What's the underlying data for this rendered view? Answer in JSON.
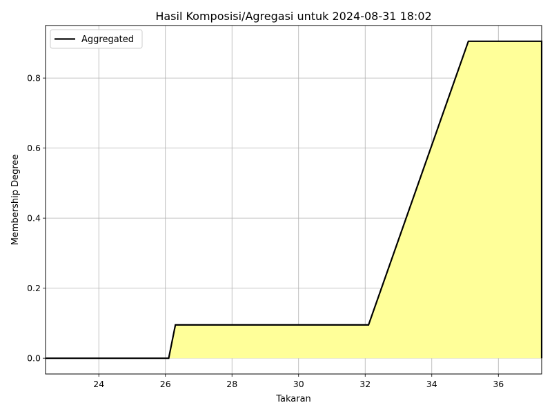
{
  "chart_data": {
    "type": "area",
    "title": "Hasil Komposisi/Agregasi untuk 2024-08-31 18:02",
    "xlabel": "Takaran",
    "ylabel": "Membership Degree",
    "xlim": [
      22.4,
      37.3
    ],
    "ylim": [
      -0.045,
      0.95
    ],
    "xticks": [
      24,
      26,
      28,
      30,
      32,
      34,
      36
    ],
    "yticks": [
      0.0,
      0.2,
      0.4,
      0.6,
      0.8
    ],
    "xtick_labels": [
      "24",
      "26",
      "28",
      "30",
      "32",
      "34",
      "36"
    ],
    "ytick_labels": [
      "0.0",
      "0.2",
      "0.4",
      "0.6",
      "0.8"
    ],
    "grid": true,
    "legend_position": "top-left",
    "series": [
      {
        "name": "Aggregated",
        "color": "#000000",
        "fill_color": "#ffff99",
        "x": [
          22.4,
          26.1,
          26.3,
          32.1,
          35.1,
          37.3,
          37.3
        ],
        "y": [
          0.0,
          0.0,
          0.095,
          0.095,
          0.905,
          0.905,
          0.0
        ]
      }
    ]
  }
}
